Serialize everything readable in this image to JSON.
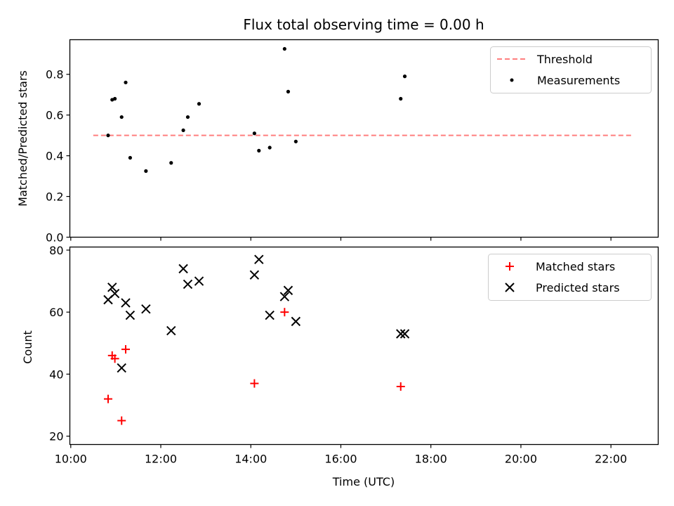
{
  "chart_data": [
    {
      "type": "scatter",
      "title": "Flux total observing time = 0.00 h",
      "xlabel": "",
      "ylabel": "Matched/Predicted stars",
      "xlim": [
        9.98,
        23.05
      ],
      "ylim": [
        0.0,
        0.97
      ],
      "yticks": [
        0.0,
        0.2,
        0.4,
        0.6,
        0.8
      ],
      "legend_position": "top-right",
      "threshold": {
        "name": "Threshold",
        "value": 0.5,
        "x_range": [
          10.5,
          22.47
        ],
        "color": "#ff7f7f"
      },
      "series": [
        {
          "name": "Measurements",
          "color": "#000000",
          "points": [
            [
              10.83,
              0.5
            ],
            [
              10.92,
              0.675
            ],
            [
              10.98,
              0.68
            ],
            [
              11.13,
              0.59
            ],
            [
              11.22,
              0.76
            ],
            [
              11.32,
              0.39
            ],
            [
              11.67,
              0.325
            ],
            [
              12.23,
              0.365
            ],
            [
              12.5,
              0.525
            ],
            [
              12.6,
              0.59
            ],
            [
              12.85,
              0.655
            ],
            [
              14.08,
              0.51
            ],
            [
              14.18,
              0.425
            ],
            [
              14.42,
              0.44
            ],
            [
              14.75,
              0.925
            ],
            [
              14.83,
              0.715
            ],
            [
              15.0,
              0.47
            ],
            [
              17.33,
              0.68
            ],
            [
              17.42,
              0.79
            ]
          ]
        }
      ]
    },
    {
      "type": "scatter",
      "title": "",
      "xlabel": "Time (UTC)",
      "ylabel": "Count",
      "xlim": [
        9.98,
        23.05
      ],
      "ylim": [
        17.3,
        81.0
      ],
      "yticks": [
        20,
        40,
        60,
        80
      ],
      "xticks": [
        "10:00",
        "12:00",
        "14:00",
        "16:00",
        "18:00",
        "20:00",
        "22:00"
      ],
      "xtick_values": [
        10,
        12,
        14,
        16,
        18,
        20,
        22
      ],
      "legend_position": "top-right",
      "series": [
        {
          "name": "Matched stars",
          "color": "#ff0000",
          "marker": "+",
          "points": [
            [
              10.83,
              32
            ],
            [
              10.92,
              46
            ],
            [
              10.98,
              45
            ],
            [
              11.13,
              25
            ],
            [
              11.22,
              48
            ],
            [
              14.08,
              37
            ],
            [
              14.75,
              60
            ],
            [
              17.33,
              36
            ]
          ]
        },
        {
          "name": "Predicted stars",
          "color": "#000000",
          "marker": "x",
          "points": [
            [
              10.83,
              64
            ],
            [
              10.92,
              68
            ],
            [
              10.98,
              66
            ],
            [
              11.13,
              42
            ],
            [
              11.22,
              63
            ],
            [
              11.32,
              59
            ],
            [
              11.67,
              61
            ],
            [
              12.23,
              54
            ],
            [
              12.5,
              74
            ],
            [
              12.6,
              69
            ],
            [
              12.85,
              70
            ],
            [
              14.08,
              72
            ],
            [
              14.18,
              77
            ],
            [
              14.42,
              59
            ],
            [
              14.75,
              65
            ],
            [
              14.83,
              67
            ],
            [
              15.0,
              57
            ],
            [
              17.33,
              53
            ],
            [
              17.42,
              53
            ]
          ]
        }
      ]
    }
  ]
}
